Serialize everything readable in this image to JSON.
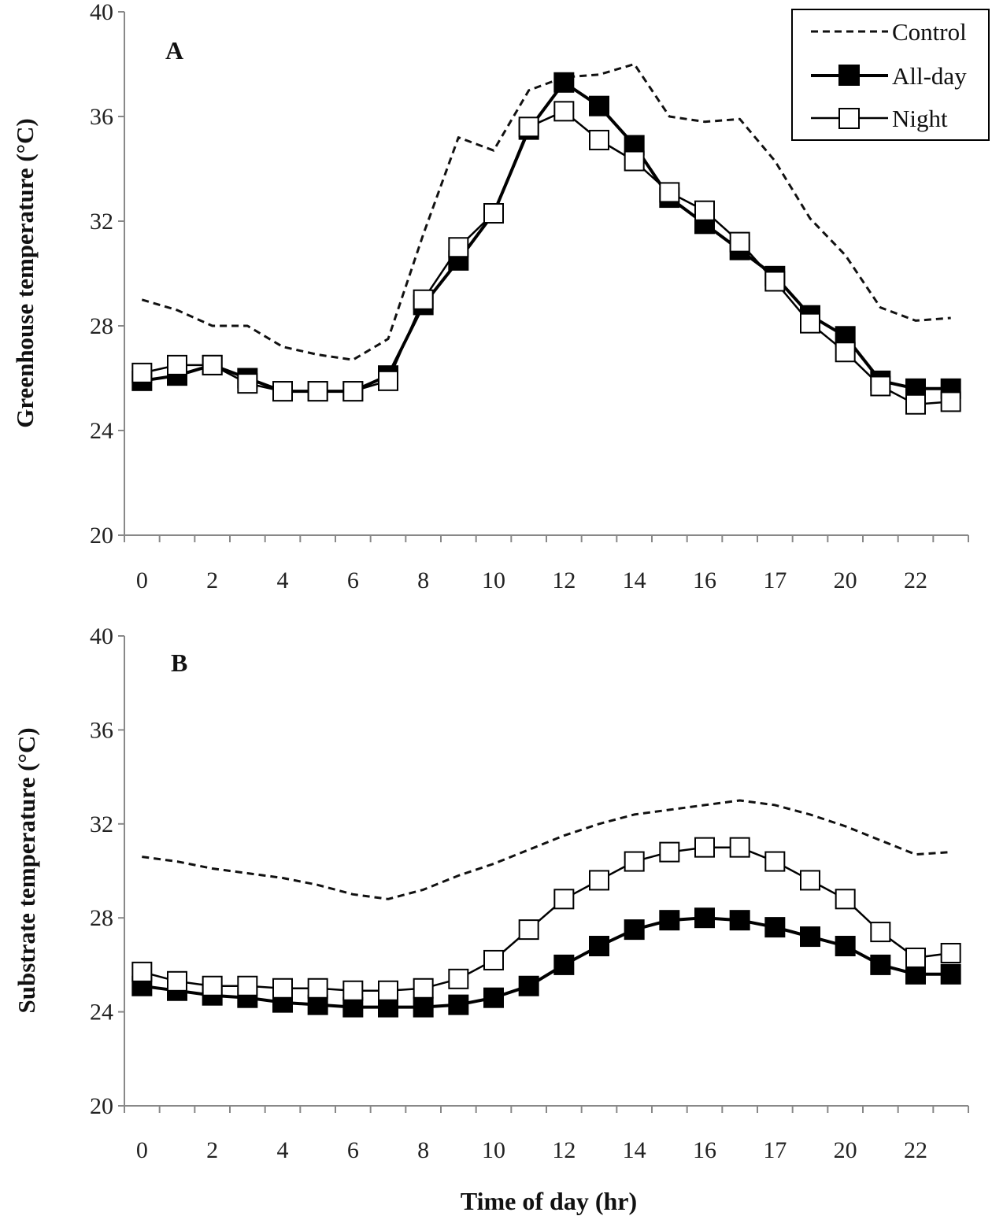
{
  "chart_data": [
    {
      "panel": "A",
      "type": "line",
      "ylabel": "Greenhouse temperature (°C)",
      "xlabel": "",
      "ylim": [
        20,
        40
      ],
      "yticks": [
        "20",
        "24",
        "28",
        "32",
        "36",
        "40"
      ],
      "xtick_labels": [
        "0",
        "2",
        "4",
        "6",
        "8",
        "10",
        "12",
        "14",
        "16",
        "17",
        "20",
        "22"
      ],
      "x": [
        0,
        1,
        2,
        3,
        4,
        5,
        6,
        7,
        8,
        9,
        10,
        11,
        12,
        13,
        14,
        15,
        16,
        17,
        18,
        19,
        20,
        21,
        22,
        23
      ],
      "legend": {
        "position": "top-right",
        "entries": [
          "Control",
          "All-day",
          "Night"
        ]
      },
      "series": [
        {
          "name": "Control",
          "style": "dashed",
          "values": [
            29.0,
            28.6,
            28.0,
            28.0,
            27.2,
            26.9,
            26.7,
            27.5,
            31.5,
            35.2,
            34.7,
            37.0,
            37.5,
            37.6,
            38.0,
            36.0,
            35.8,
            35.9,
            34.3,
            32.1,
            30.7,
            28.7,
            28.2,
            28.3
          ]
        },
        {
          "name": "All-day",
          "style": "filled-square",
          "values": [
            25.9,
            26.1,
            26.5,
            26.0,
            25.5,
            25.5,
            25.5,
            26.1,
            28.8,
            30.5,
            32.3,
            35.5,
            37.3,
            36.4,
            34.9,
            32.9,
            31.9,
            30.9,
            29.9,
            28.4,
            27.6,
            25.9,
            25.6,
            25.6
          ]
        },
        {
          "name": "Night",
          "style": "open-square",
          "values": [
            26.2,
            26.5,
            26.5,
            25.8,
            25.5,
            25.5,
            25.5,
            25.9,
            29.0,
            31.0,
            32.3,
            35.6,
            36.2,
            35.1,
            34.3,
            33.1,
            32.4,
            31.2,
            29.7,
            28.1,
            27.0,
            25.7,
            25.0,
            25.1
          ]
        }
      ]
    },
    {
      "panel": "B",
      "type": "line",
      "ylabel": "Substrate  temperature (°C)",
      "xlabel": "Time of day (hr)",
      "ylim": [
        20,
        40
      ],
      "yticks": [
        "20",
        "24",
        "28",
        "32",
        "36",
        "40"
      ],
      "xtick_labels": [
        "0",
        "2",
        "4",
        "6",
        "8",
        "10",
        "12",
        "14",
        "16",
        "17",
        "20",
        "22"
      ],
      "x": [
        0,
        1,
        2,
        3,
        4,
        5,
        6,
        7,
        8,
        9,
        10,
        11,
        12,
        13,
        14,
        15,
        16,
        17,
        18,
        19,
        20,
        21,
        22,
        23
      ],
      "series": [
        {
          "name": "Control",
          "style": "dashed",
          "values": [
            30.6,
            30.4,
            30.1,
            29.9,
            29.7,
            29.4,
            29.0,
            28.8,
            29.2,
            29.8,
            30.3,
            30.9,
            31.5,
            32.0,
            32.4,
            32.6,
            32.8,
            33.0,
            32.8,
            32.4,
            31.9,
            31.3,
            30.7,
            30.8
          ]
        },
        {
          "name": "All-day",
          "style": "filled-square",
          "values": [
            25.1,
            24.9,
            24.7,
            24.6,
            24.4,
            24.3,
            24.2,
            24.2,
            24.2,
            24.3,
            24.6,
            25.1,
            26.0,
            26.8,
            27.5,
            27.9,
            28.0,
            27.9,
            27.6,
            27.2,
            26.8,
            26.0,
            25.6,
            25.6
          ]
        },
        {
          "name": "Night",
          "style": "open-square",
          "values": [
            25.7,
            25.3,
            25.1,
            25.1,
            25.0,
            25.0,
            24.9,
            24.9,
            25.0,
            25.4,
            26.2,
            27.5,
            28.8,
            29.6,
            30.4,
            30.8,
            31.0,
            31.0,
            30.4,
            29.6,
            28.8,
            27.4,
            26.3,
            26.5
          ]
        }
      ]
    }
  ]
}
